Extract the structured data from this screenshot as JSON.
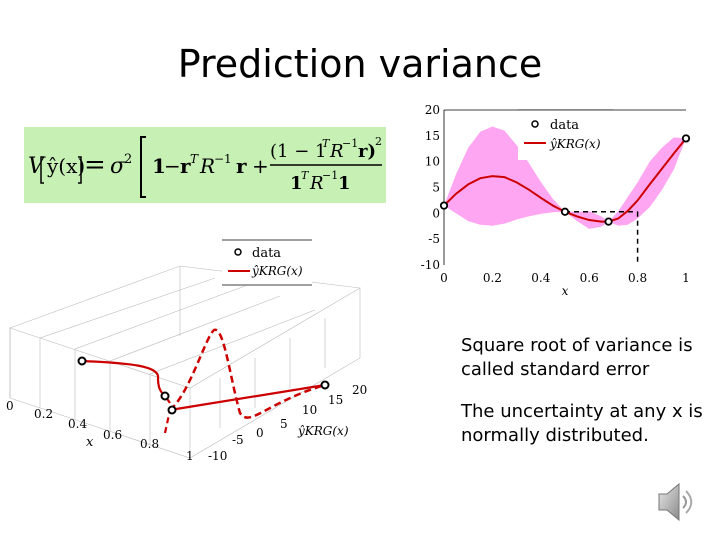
{
  "slide": {
    "title": "Prediction variance",
    "formula": {
      "lhs_V": "V",
      "lhs_arg": "ŷ(x)",
      "eq": "=",
      "sigma": "σ",
      "sq": "2",
      "one": "1",
      "minus": "−",
      "r": "r",
      "T": "T",
      "R": "R",
      "inv": "−1",
      "plus": "+",
      "numer": "(1 − 1",
      "numer2": "R",
      "numer3": "r)",
      "numer_sq": "2",
      "denom": "1",
      "denom2": "R",
      "denom3": "1"
    },
    "bullets": [
      "Square root of variance is called standard error",
      "The uncertainty at any x is normally distributed."
    ],
    "icons": {
      "speaker": "speaker-icon"
    }
  },
  "chart_data": [
    {
      "type": "line",
      "xlabel": "x",
      "ylabel": "",
      "xlim": [
        0,
        1
      ],
      "ylim": [
        -10,
        20
      ],
      "xticks": [
        "0",
        "0.2",
        "0.4",
        "0.6",
        "0.8",
        "1"
      ],
      "yticks": [
        "20",
        "15",
        "10",
        "5",
        "0",
        "-5",
        "-10"
      ],
      "legend": {
        "placement": "top-center",
        "entries": [
          "data",
          "ŷKRG(x)"
        ]
      },
      "data_points": [
        {
          "x": 0.0,
          "y": 1.5
        },
        {
          "x": 0.5,
          "y": 0.3
        },
        {
          "x": 0.68,
          "y": -1.6
        },
        {
          "x": 1.0,
          "y": 14.5
        }
      ],
      "prediction": {
        "x": [
          0.0,
          0.05,
          0.1,
          0.15,
          0.2,
          0.25,
          0.3,
          0.35,
          0.4,
          0.45,
          0.5,
          0.55,
          0.6,
          0.65,
          0.68,
          0.72,
          0.76,
          0.8,
          0.85,
          0.9,
          0.95,
          1.0
        ],
        "y": [
          1.5,
          3.8,
          5.6,
          6.8,
          7.2,
          7.0,
          6.0,
          4.6,
          3.0,
          1.5,
          0.3,
          -0.6,
          -1.3,
          -1.6,
          -1.6,
          -1.0,
          0.5,
          2.5,
          5.6,
          8.6,
          11.6,
          14.5
        ]
      },
      "band_lower": [
        1.5,
        0.0,
        -1.5,
        -2.2,
        -2.4,
        -2.0,
        -1.2,
        -0.6,
        -0.1,
        0.2,
        0.3,
        -1.5,
        -3.0,
        -2.6,
        -1.6,
        -2.4,
        -2.2,
        -1.0,
        1.2,
        4.5,
        8.5,
        14.5
      ],
      "band_upper": [
        1.5,
        7.6,
        12.7,
        15.8,
        16.8,
        16.0,
        13.2,
        9.8,
        6.1,
        2.8,
        0.3,
        0.3,
        0.4,
        -0.6,
        -1.6,
        0.4,
        3.2,
        6.0,
        10.0,
        12.7,
        14.7,
        14.5
      ],
      "dashed_guides": [
        {
          "x": [
            0.5,
            0.8
          ],
          "y": [
            0.3,
            0.3
          ]
        },
        {
          "x": [
            0.8,
            0.8
          ],
          "y": [
            0.3,
            -10
          ]
        }
      ]
    },
    {
      "type": "line",
      "xlabel": "x",
      "ylabel": "ŷKRG(x)",
      "xticks": [
        "0",
        "0.2",
        "0.4",
        "0.6",
        "0.8",
        "1"
      ],
      "yticks": [
        "-10",
        "-5",
        "0",
        "5",
        "10",
        "15",
        "20"
      ],
      "legend": {
        "placement": "top-center",
        "entries": [
          "data",
          "ŷKRG(x)"
        ]
      }
    }
  ]
}
